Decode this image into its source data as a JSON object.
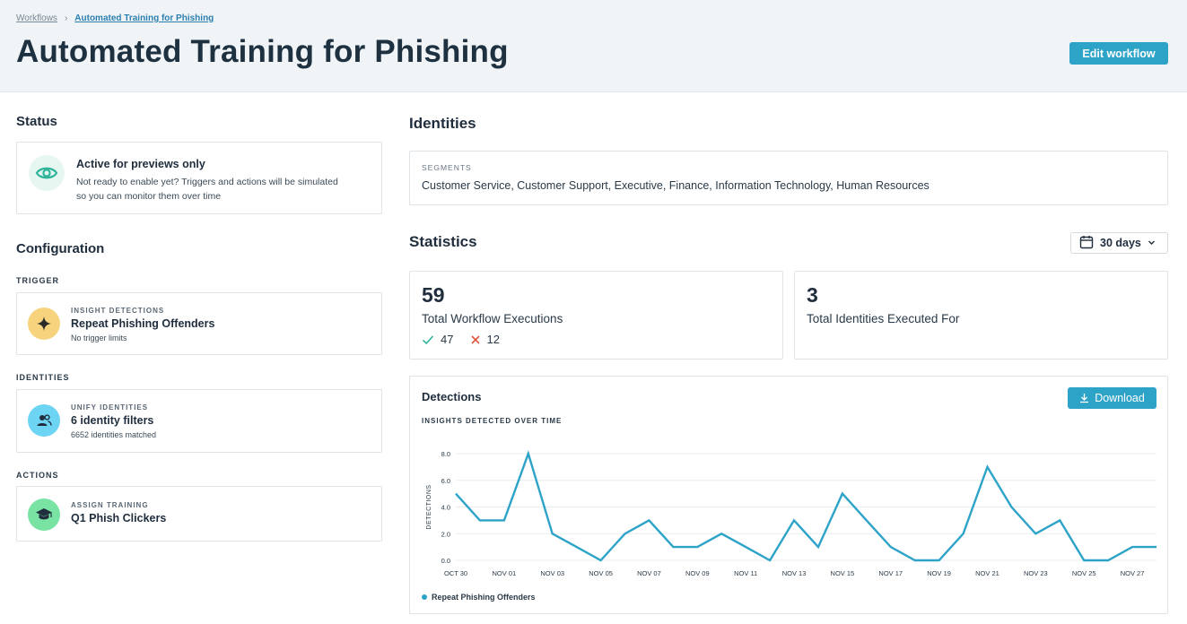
{
  "breadcrumb": {
    "parent": "Workflows",
    "separator": "›",
    "current": "Automated Training for Phishing"
  },
  "page_title": "Automated Training for Phishing",
  "edit_button": "Edit workflow",
  "status": {
    "heading": "Status",
    "title": "Active for previews only",
    "description": "Not ready to enable yet? Triggers and actions will be simulated so you can monitor them over time",
    "icon": "eye-icon"
  },
  "configuration": {
    "heading": "Configuration",
    "trigger": {
      "section_label": "TRIGGER",
      "kicker": "INSIGHT DETECTIONS",
      "name": "Repeat Phishing Offenders",
      "note": "No trigger limits",
      "icon": "sparkle-icon",
      "icon_bg": "#f7d37e"
    },
    "identities": {
      "section_label": "IDENTITIES",
      "kicker": "UNIFY IDENTITIES",
      "name": "6 identity filters",
      "note": "6652 identities matched",
      "icon": "users-icon",
      "icon_bg": "#6dd4f4"
    },
    "actions": {
      "section_label": "ACTIONS",
      "kicker": "ASSIGN TRAINING",
      "name": "Q1 Phish Clickers",
      "icon": "graduation-cap-icon",
      "icon_bg": "#78e3a3"
    }
  },
  "identities_panel": {
    "heading": "Identities",
    "segments_label": "SEGMENTS",
    "segments_value": "Customer Service, Customer Support, Executive, Finance, Information Technology, Human Resources"
  },
  "statistics": {
    "heading": "Statistics",
    "range": "30 days",
    "executions": {
      "value": "59",
      "label": "Total Workflow Executions",
      "success": "47",
      "failed": "12"
    },
    "identities": {
      "value": "3",
      "label": "Total Identities Executed For"
    }
  },
  "detections": {
    "title": "Detections",
    "subtitle": "INSIGHTS DETECTED OVER TIME",
    "download_label": "Download",
    "legend": "Repeat Phishing Offenders"
  },
  "colors": {
    "accent": "#2ea3c8",
    "success": "#2fb39a",
    "error": "#e0533d",
    "title": "#1d3140"
  },
  "chart_data": {
    "type": "line",
    "xlabel": "",
    "ylabel": "DETECTIONS",
    "ylim": [
      0,
      8
    ],
    "y_ticks": [
      "0.0",
      "2.0",
      "4.0",
      "6.0",
      "8.0"
    ],
    "x_ticks": [
      "OCT 30",
      "NOV 01",
      "NOV 03",
      "NOV 05",
      "NOV 07",
      "NOV 09",
      "NOV 11",
      "NOV 13",
      "NOV 15",
      "NOV 17",
      "NOV 19",
      "NOV 21",
      "NOV 23",
      "NOV 25",
      "NOV 27"
    ],
    "x_start_day": 0,
    "grid": true,
    "legend_position": "bottom-left",
    "series": [
      {
        "name": "Repeat Phishing Offenders",
        "values": [
          5,
          3,
          3,
          8,
          2,
          1,
          0,
          2,
          3,
          1,
          1,
          2,
          1,
          0,
          3,
          1,
          5,
          3,
          1,
          0,
          0,
          2,
          7,
          4,
          2,
          3,
          0,
          0,
          1,
          1
        ]
      }
    ]
  }
}
